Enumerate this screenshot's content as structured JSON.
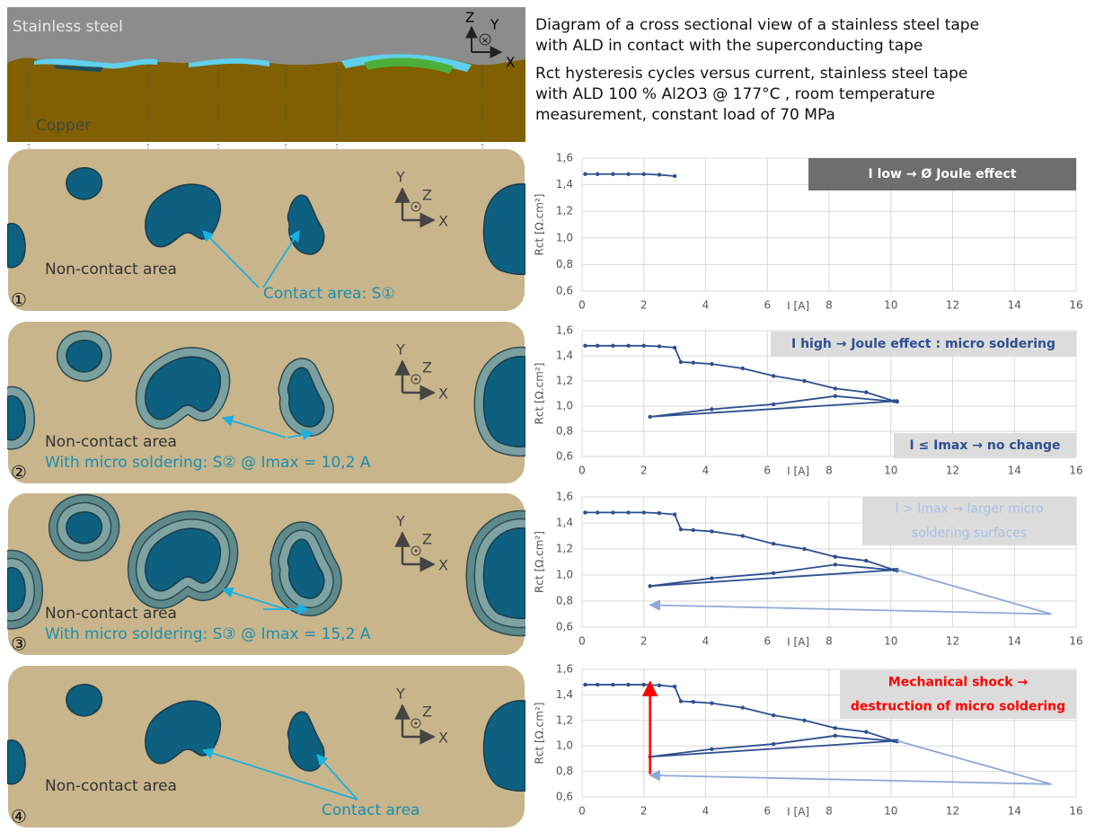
{
  "header": {
    "steel": "Stainless steel",
    "copper": "Copper",
    "axes": [
      "Z",
      "Y",
      "X"
    ]
  },
  "caption": {
    "lines": [
      "Diagram of a cross sectional view of a stainless steel tape",
      "with ALD in contact with the superconducting tape"
    ],
    "chart_lines": [
      "Rct hysteresis cycles versus current, stainless steel tape",
      "with ALD  100 % Al2O3 @ 177°C ,  room temperature",
      "measurement, constant load of 70 MPa"
    ]
  },
  "panels": [
    {
      "number": "①",
      "axes": [
        "Y",
        "Z",
        "X"
      ],
      "noncontact": "Non-contact area",
      "label": "Contact area: S①"
    },
    {
      "number": "②",
      "axes": [
        "Y",
        "Z",
        "X"
      ],
      "noncontact": "Non-contact area",
      "label": "With micro soldering: S② @ Imax = 10,2 A"
    },
    {
      "number": "③",
      "axes": [
        "Y",
        "Z",
        "X"
      ],
      "noncontact": "Non-contact area",
      "label": "With micro soldering: S③ @ Imax = 15,2 A"
    },
    {
      "number": "④",
      "axes": [
        "Y",
        "Z",
        "X"
      ],
      "noncontact": "Non-contact area",
      "label": "Contact area"
    }
  ],
  "chart_data": [
    {
      "type": "line",
      "xlabel": "I [A]",
      "ylabel": "Rct [Ω.cm²]",
      "xlim": [
        0,
        16
      ],
      "xticks": [
        0,
        2,
        4,
        6,
        8,
        10,
        12,
        14,
        16
      ],
      "ylim": [
        0.6,
        1.6
      ],
      "yticks": [
        {
          "value": 0.6,
          "label": "0,6"
        },
        {
          "value": 0.8,
          "label": "0,8"
        },
        {
          "value": 1.0,
          "label": "1,0"
        },
        {
          "value": 1.2,
          "label": "1,2"
        },
        {
          "value": 1.4,
          "label": "1,4"
        },
        {
          "value": 1.6,
          "label": "1,6"
        }
      ],
      "grid": true,
      "series": [
        {
          "color": "#2f4f8f",
          "x": [
            0.1,
            0.5,
            1,
            1.5,
            2,
            2.5,
            3
          ],
          "values": [
            1.48,
            1.48,
            1.48,
            1.48,
            1.48,
            1.475,
            1.465
          ]
        }
      ],
      "annotations": [
        {
          "lines": [
            "I low →  Ø Joule effect"
          ],
          "color": "#ffffff",
          "background": "#6e6e6e"
        }
      ]
    },
    {
      "type": "line",
      "xlabel": "I [A]",
      "ylabel": "Rct [Ω.cm²]",
      "xlim": [
        0,
        16
      ],
      "xticks": [
        0,
        2,
        4,
        6,
        8,
        10,
        12,
        14,
        16
      ],
      "ylim": [
        0.6,
        1.6
      ],
      "yticks": [
        {
          "value": 0.6,
          "label": "0,6"
        },
        {
          "value": 0.8,
          "label": "0,8"
        },
        {
          "value": 1.0,
          "label": "1,0"
        },
        {
          "value": 1.2,
          "label": "1,2"
        },
        {
          "value": 1.4,
          "label": "1,4"
        },
        {
          "value": 1.6,
          "label": "1,6"
        }
      ],
      "grid": true,
      "series": [
        {
          "color": "#2f4f8f",
          "x": [
            0.1,
            0.5,
            1,
            1.5,
            2,
            2.5,
            3,
            3.2,
            3.6,
            4.2,
            5.2,
            6.2,
            7.2,
            8.2,
            9.2,
            10.1,
            10.2,
            8.2,
            6.2,
            4.2,
            2.2,
            10.2
          ],
          "values": [
            1.48,
            1.48,
            1.48,
            1.48,
            1.48,
            1.475,
            1.465,
            1.35,
            1.345,
            1.335,
            1.3,
            1.24,
            1.2,
            1.14,
            1.11,
            1.04,
            1.035,
            1.08,
            1.015,
            0.975,
            0.915,
            1.04
          ]
        }
      ],
      "annotations": [
        {
          "lines": [
            "I high → Joule effect : micro soldering"
          ],
          "color": "#2f4f8f",
          "background": "#dcdcdc"
        },
        {
          "lines": [
            "I ≤ Imax → no change"
          ],
          "color": "#2f4f8f",
          "background": "#dcdcdc"
        }
      ]
    },
    {
      "type": "line",
      "xlabel": "I [A]",
      "ylabel": "Rct [Ω.cm²]",
      "xlim": [
        0,
        16
      ],
      "xticks": [
        0,
        2,
        4,
        6,
        8,
        10,
        12,
        14,
        16
      ],
      "ylim": [
        0.6,
        1.6
      ],
      "yticks": [
        {
          "value": 0.6,
          "label": "0,6"
        },
        {
          "value": 0.8,
          "label": "0,8"
        },
        {
          "value": 1.0,
          "label": "1,0"
        },
        {
          "value": 1.2,
          "label": "1,2"
        },
        {
          "value": 1.4,
          "label": "1,4"
        },
        {
          "value": 1.6,
          "label": "1,6"
        }
      ],
      "grid": true,
      "series": [
        {
          "color": "#2f4f8f",
          "x": [
            0.1,
            0.5,
            1,
            1.5,
            2,
            2.5,
            3,
            3.2,
            3.6,
            4.2,
            5.2,
            6.2,
            7.2,
            8.2,
            9.2,
            10.1,
            10.2,
            8.2,
            6.2,
            4.2,
            2.2,
            10.2
          ],
          "values": [
            1.48,
            1.48,
            1.48,
            1.48,
            1.48,
            1.475,
            1.465,
            1.35,
            1.345,
            1.335,
            1.3,
            1.24,
            1.2,
            1.14,
            1.11,
            1.04,
            1.035,
            1.08,
            1.015,
            0.975,
            0.915,
            1.04
          ]
        },
        {
          "color": "#8fa8d8",
          "x": [
            10.2,
            15.2,
            2.2
          ],
          "values": [
            1.04,
            0.7,
            0.77
          ]
        }
      ],
      "annotations": [
        {
          "lines": [
            "I > Imax → larger micro",
            "soldering surfaces"
          ],
          "color": "#a9bfe6",
          "background": "#dcdcdc"
        }
      ]
    },
    {
      "type": "line",
      "xlabel": "I [A]",
      "ylabel": "Rct [Ω.cm²]",
      "xlim": [
        0,
        16
      ],
      "xticks": [
        0,
        2,
        4,
        6,
        8,
        10,
        12,
        14,
        16
      ],
      "ylim": [
        0.6,
        1.6
      ],
      "yticks": [
        {
          "value": 0.6,
          "label": "0,6"
        },
        {
          "value": 0.8,
          "label": "0,8"
        },
        {
          "value": 1.0,
          "label": "1,0"
        },
        {
          "value": 1.2,
          "label": "1,2"
        },
        {
          "value": 1.4,
          "label": "1,4"
        },
        {
          "value": 1.6,
          "label": "1,6"
        }
      ],
      "grid": true,
      "series": [
        {
          "color": "#2f4f8f",
          "x": [
            0.1,
            0.5,
            1,
            1.5,
            2,
            2.5,
            3,
            3.2,
            3.6,
            4.2,
            5.2,
            6.2,
            7.2,
            8.2,
            9.2,
            10.1,
            10.2,
            8.2,
            6.2,
            4.2,
            2.2,
            10.2
          ],
          "values": [
            1.48,
            1.48,
            1.48,
            1.48,
            1.48,
            1.475,
            1.465,
            1.35,
            1.345,
            1.335,
            1.3,
            1.24,
            1.2,
            1.14,
            1.11,
            1.04,
            1.035,
            1.08,
            1.015,
            0.975,
            0.915,
            1.04
          ]
        },
        {
          "color": "#8fa8d8",
          "x": [
            10.2,
            15.2,
            2.2
          ],
          "values": [
            1.04,
            0.7,
            0.77
          ]
        },
        {
          "color": "#ff0000",
          "x": [
            2.2,
            2.2
          ],
          "values": [
            0.78,
            1.5
          ]
        }
      ],
      "annotations": [
        {
          "lines": [
            "Mechanical shock →",
            "destruction of micro soldering"
          ],
          "color": "#ff0000",
          "background": "#dcdcdc"
        }
      ]
    }
  ]
}
